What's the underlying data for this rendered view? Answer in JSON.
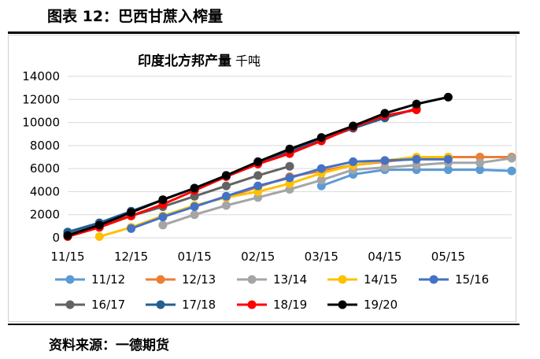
{
  "header": {
    "title": "图表 12：巴西甘蔗入榨量"
  },
  "footer": {
    "source": "资料来源：一德期货"
  },
  "chart_data": {
    "type": "line",
    "title": "印度北方邦产量",
    "subtitle": "千吨",
    "xlabel": "",
    "ylabel": "",
    "ylim": [
      0,
      14000
    ],
    "yticks": [
      "0",
      "2000",
      "4000",
      "6000",
      "8000",
      "10000",
      "12000",
      "14000"
    ],
    "xticks": [
      "11/15",
      "12/15",
      "01/15",
      "02/15",
      "03/15",
      "04/15",
      "05/15"
    ],
    "x_index_range": [
      0,
      7
    ],
    "grid": true,
    "legend_position": "bottom",
    "series": [
      {
        "name": "11/12",
        "color": "#5b9bd5",
        "points": [
          [
            4.0,
            4500
          ],
          [
            4.5,
            5500
          ],
          [
            5.0,
            5900
          ],
          [
            5.5,
            5900
          ],
          [
            6.0,
            5900
          ],
          [
            6.5,
            5900
          ],
          [
            7.0,
            5800
          ]
        ]
      },
      {
        "name": "12/13",
        "color": "#ed7d31",
        "points": [
          [
            2.5,
            3500
          ],
          [
            3.0,
            4400
          ],
          [
            3.5,
            5300
          ],
          [
            4.0,
            5800
          ],
          [
            4.5,
            6300
          ],
          [
            5.0,
            6600
          ],
          [
            5.5,
            6900
          ],
          [
            6.0,
            7000
          ],
          [
            6.5,
            7000
          ],
          [
            7.0,
            7000
          ]
        ]
      },
      {
        "name": "13/14",
        "color": "#a5a5a5",
        "points": [
          [
            1.5,
            1100
          ],
          [
            2.0,
            2000
          ],
          [
            2.5,
            2800
          ],
          [
            3.0,
            3500
          ],
          [
            3.5,
            4200
          ],
          [
            4.0,
            5000
          ],
          [
            4.5,
            5900
          ],
          [
            5.0,
            6100
          ],
          [
            5.5,
            6300
          ],
          [
            6.0,
            6500
          ],
          [
            6.5,
            6500
          ],
          [
            7.0,
            6900
          ]
        ]
      },
      {
        "name": "14/15",
        "color": "#ffc000",
        "points": [
          [
            0.5,
            100
          ],
          [
            1.0,
            900
          ],
          [
            1.5,
            1900
          ],
          [
            2.0,
            2800
          ],
          [
            2.5,
            3500
          ],
          [
            3.0,
            4000
          ],
          [
            3.5,
            4700
          ],
          [
            4.0,
            5600
          ],
          [
            4.5,
            6300
          ],
          [
            5.0,
            6700
          ],
          [
            5.5,
            7000
          ],
          [
            6.0,
            7000
          ]
        ]
      },
      {
        "name": "15/16",
        "color": "#4472c4",
        "points": [
          [
            1.0,
            800
          ],
          [
            1.5,
            1800
          ],
          [
            2.0,
            2700
          ],
          [
            2.5,
            3600
          ],
          [
            3.0,
            4500
          ],
          [
            3.5,
            5200
          ],
          [
            4.0,
            6000
          ],
          [
            4.5,
            6600
          ],
          [
            5.0,
            6700
          ],
          [
            5.5,
            6800
          ],
          [
            6.0,
            6800
          ]
        ]
      },
      {
        "name": "16/17",
        "color": "#636363",
        "points": [
          [
            0.0,
            300
          ],
          [
            0.5,
            1100
          ],
          [
            1.0,
            1900
          ],
          [
            1.5,
            2700
          ],
          [
            2.0,
            3600
          ],
          [
            2.5,
            4500
          ],
          [
            3.0,
            5400
          ],
          [
            3.5,
            6200
          ]
        ]
      },
      {
        "name": "17/18",
        "color": "#255e91",
        "points": [
          [
            0.0,
            500
          ],
          [
            0.5,
            1300
          ],
          [
            1.0,
            2300
          ],
          [
            1.5,
            3300
          ],
          [
            2.0,
            4300
          ],
          [
            2.5,
            5400
          ],
          [
            3.0,
            6500
          ],
          [
            3.5,
            7500
          ],
          [
            4.0,
            8500
          ],
          [
            4.5,
            9500
          ],
          [
            5.0,
            10400
          ],
          [
            5.5,
            11200
          ]
        ]
      },
      {
        "name": "18/19",
        "color": "#ff0000",
        "points": [
          [
            0.0,
            100
          ],
          [
            0.5,
            900
          ],
          [
            1.0,
            1900
          ],
          [
            1.5,
            2900
          ],
          [
            2.0,
            4100
          ],
          [
            2.5,
            5300
          ],
          [
            3.0,
            6400
          ],
          [
            3.5,
            7300
          ],
          [
            4.0,
            8400
          ],
          [
            4.5,
            9600
          ],
          [
            5.0,
            10600
          ],
          [
            5.5,
            11100
          ]
        ]
      },
      {
        "name": "19/20",
        "color": "#000000",
        "points": [
          [
            0.0,
            200
          ],
          [
            0.5,
            1100
          ],
          [
            1.0,
            2200
          ],
          [
            1.5,
            3300
          ],
          [
            2.0,
            4300
          ],
          [
            2.5,
            5400
          ],
          [
            3.0,
            6600
          ],
          [
            3.5,
            7700
          ],
          [
            4.0,
            8700
          ],
          [
            4.5,
            9700
          ],
          [
            5.0,
            10800
          ],
          [
            5.5,
            11600
          ],
          [
            6.0,
            12200
          ]
        ]
      }
    ]
  }
}
